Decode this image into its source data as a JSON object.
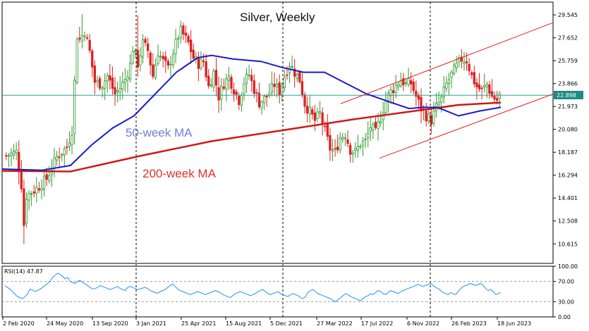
{
  "chart_data": {
    "type": "candlestick",
    "title": "Silver, Weekly",
    "current_price": "22.898",
    "y_ticks": [
      "29.545",
      "27.652",
      "25.759",
      "23.866",
      "21.973",
      "20.080",
      "18.187",
      "16.294",
      "14.401",
      "12.508",
      "10.615"
    ],
    "x_labels": [
      "2 Feb 2020",
      "24 May 2020",
      "13 Sep 2020",
      "3 Jan 2021",
      "25 Apr 2021",
      "15 Aug 2021",
      "5 Dec 2021",
      "27 Mar 2022",
      "17 Jul 2022",
      "6 Nov 2022",
      "26 Feb 2023",
      "18 Jun 2023"
    ],
    "ylim": [
      9.0,
      30.6
    ],
    "annotations": {
      "ma50": {
        "text": "50-week MA",
        "color": "#6f7fd4"
      },
      "ma200": {
        "text": "200-week MA",
        "color": "#e03030"
      }
    },
    "colors": {
      "bull": "#2e9a2e",
      "bear": "#e02020",
      "ma50": "#1a1acc",
      "ma200": "#cc1a1a",
      "channel": "#e02020",
      "hline": "#2aa198"
    },
    "rsi": {
      "label": "RSI(14) 47.87",
      "ticks": [
        "100.00",
        "70.00",
        "30.00",
        "0.00"
      ],
      "levels": [
        70,
        30
      ],
      "values": [
        62,
        58,
        55,
        50,
        45,
        40,
        38,
        36,
        40,
        45,
        55,
        53,
        50,
        52,
        55,
        58,
        62,
        66,
        70,
        78,
        82,
        86,
        84,
        80,
        75,
        78,
        70,
        68,
        66,
        70,
        72,
        68,
        65,
        62,
        58,
        55,
        56,
        58,
        62,
        60,
        58,
        56,
        54,
        56,
        58,
        60,
        56,
        54,
        52,
        58,
        60,
        58,
        56,
        54,
        55,
        57,
        58,
        56,
        52,
        50,
        48,
        47,
        50,
        52,
        54,
        58,
        62,
        65,
        60,
        55,
        52,
        50,
        48,
        46,
        44,
        46,
        48,
        50,
        48,
        46,
        44,
        46,
        48,
        50,
        52,
        50,
        48,
        44,
        42,
        40,
        38,
        42,
        46,
        48,
        50,
        48,
        46,
        44,
        42,
        44,
        46,
        50,
        52,
        54,
        50,
        46,
        44,
        46,
        48,
        50,
        46,
        44,
        42,
        40,
        44,
        46,
        44,
        42,
        38,
        36,
        40,
        48,
        52,
        54,
        50,
        46,
        44,
        42,
        40,
        38,
        36,
        32,
        30,
        34,
        38,
        42,
        46,
        44,
        40,
        38,
        36,
        34,
        32,
        36,
        40,
        42,
        46,
        44,
        48,
        52,
        50,
        46,
        44,
        48,
        52,
        50,
        48,
        46,
        50,
        52,
        54,
        56,
        58,
        60,
        62,
        64,
        62,
        60,
        62,
        64,
        66,
        62,
        58,
        56,
        52,
        48,
        46,
        44,
        48,
        46,
        44,
        50,
        56,
        60,
        62,
        64,
        66,
        64,
        62,
        64,
        66,
        62,
        56,
        52,
        54,
        50,
        44,
        46,
        48
      ]
    }
  }
}
